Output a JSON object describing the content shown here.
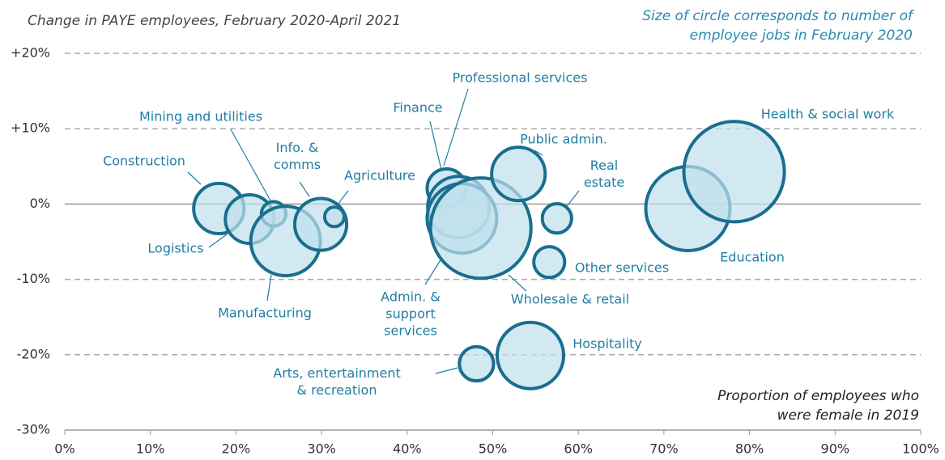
{
  "chart_data": {
    "type": "bubble",
    "title": "Change in PAYE employees, February 2020-April 2021",
    "size_note": "Size of circle corresponds to number of employee jobs in February 2020",
    "x_label": "Proportion of employees who were female in 2019",
    "categories": [
      "Construction",
      "Logistics",
      "Mining and utilities",
      "Manufacturing",
      "Info. & comms",
      "Agriculture",
      "Finance",
      "Professional services",
      "Admin. & support services",
      "Wholesale & retail",
      "Public admin.",
      "Real estate",
      "Other services",
      "Arts, entertainment & recreation",
      "Hospitality",
      "Education",
      "Health & social work"
    ],
    "x": [
      18.0,
      21.6,
      24.4,
      25.8,
      29.9,
      31.5,
      44.6,
      46.0,
      46.4,
      48.6,
      53.0,
      57.5,
      56.6,
      48.1,
      54.4,
      72.8,
      78.2
    ],
    "values": [
      -0.6,
      -2.0,
      -1.3,
      -4.9,
      -2.7,
      -1.7,
      2.1,
      -0.4,
      -1.9,
      -3.2,
      4.0,
      -1.9,
      -7.7,
      -21.2,
      -20.1,
      -0.6,
      4.3
    ],
    "sizes": [
      1060,
      990,
      250,
      2030,
      1130,
      160,
      630,
      1590,
      2030,
      4230,
      1200,
      360,
      400,
      490,
      1850,
      2970,
      4230
    ],
    "color": "#1a6e8e",
    "fill": "#bfe0ec",
    "xlim": [
      0,
      100
    ],
    "ylim": [
      -30,
      20
    ],
    "xticks": [
      {
        "value": 0,
        "label": "0%"
      },
      {
        "value": 10,
        "label": "10%"
      },
      {
        "value": 20,
        "label": "20%"
      },
      {
        "value": 30,
        "label": "30%"
      },
      {
        "value": 40,
        "label": "40%"
      },
      {
        "value": 50,
        "label": "50%"
      },
      {
        "value": 60,
        "label": "60%"
      },
      {
        "value": 70,
        "label": "70%"
      },
      {
        "value": 80,
        "label": "80%"
      },
      {
        "value": 90,
        "label": "90%"
      },
      {
        "value": 100,
        "label": "100%"
      }
    ],
    "yticks": [
      {
        "value": -30,
        "label": "-30%"
      },
      {
        "value": -20,
        "label": "-20%"
      },
      {
        "value": -10,
        "label": "-10%"
      },
      {
        "value": 0,
        "label": "0%"
      },
      {
        "value": 10,
        "label": "+10%"
      },
      {
        "value": 20,
        "label": "+20%"
      }
    ],
    "grid": true
  }
}
